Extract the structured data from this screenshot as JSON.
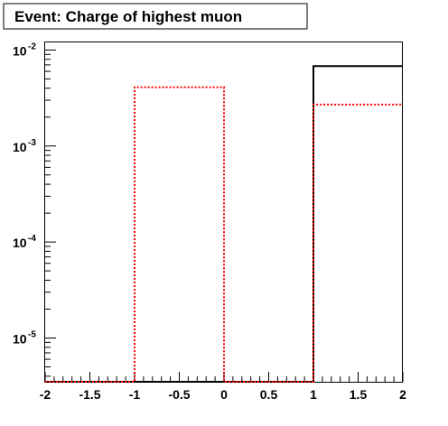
{
  "chart_data": {
    "type": "histogram",
    "title": "Event: Charge of highest muon",
    "xlabel": "",
    "ylabel": "",
    "xlim": [
      -2,
      2
    ],
    "ylim": [
      3.5e-06,
      0.012
    ],
    "yscale": "log",
    "grid": false,
    "bin_edges": [
      -2,
      -1,
      0,
      1,
      2
    ],
    "x_ticks": [
      {
        "value": -2,
        "label": "-2"
      },
      {
        "value": -1.5,
        "label": "-1.5"
      },
      {
        "value": -1,
        "label": "-1"
      },
      {
        "value": -0.5,
        "label": "-0.5"
      },
      {
        "value": 0,
        "label": "0"
      },
      {
        "value": 0.5,
        "label": "0.5"
      },
      {
        "value": 1,
        "label": "1"
      },
      {
        "value": 1.5,
        "label": "1.5"
      },
      {
        "value": 2,
        "label": "2"
      }
    ],
    "y_ticks": [
      {
        "value": 1e-05,
        "base": "10",
        "exp": "-5"
      },
      {
        "value": 0.0001,
        "base": "10",
        "exp": "-4"
      },
      {
        "value": 0.001,
        "base": "10",
        "exp": "-3"
      },
      {
        "value": 0.01,
        "base": "10",
        "exp": "-2"
      }
    ],
    "series": [
      {
        "color": "#000000",
        "style": "solid",
        "values": [
          0,
          0,
          0,
          0.0068
        ]
      },
      {
        "color": "#ff0000",
        "style": "dotted",
        "values": [
          0,
          0.0041,
          0,
          0.0027
        ]
      }
    ]
  }
}
